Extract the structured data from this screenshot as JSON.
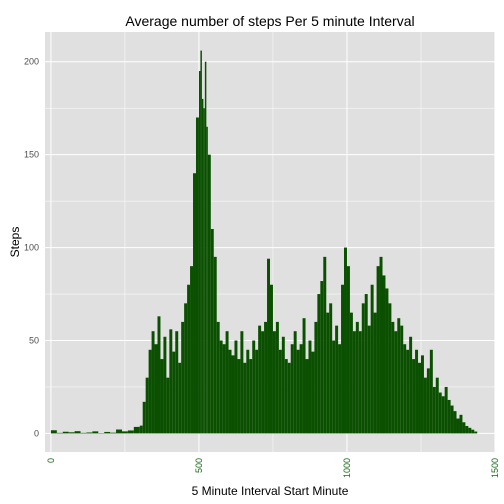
{
  "chart_data": {
    "type": "bar",
    "title": "Average number of steps Per 5 minute Interval",
    "xlabel": "5 Minute Interval Start Minute",
    "ylabel": "Steps",
    "xlim": [
      -20,
      1500
    ],
    "ylim": [
      -10,
      216
    ],
    "xticks": [
      0,
      500,
      1000,
      1500
    ],
    "xtick_labels": [
      "0",
      "500",
      "1000",
      "1500"
    ],
    "yticks": [
      0,
      50,
      100,
      150,
      200
    ],
    "ytick_labels": [
      "0",
      "50",
      "100",
      "150",
      "200"
    ],
    "grid": true,
    "bar_color": "#0a5000",
    "panel_color": "#e0e0e0",
    "series": [
      {
        "x": [
          0,
          20,
          40,
          60,
          80,
          100,
          120,
          140,
          160,
          180,
          200,
          220,
          240,
          260,
          280,
          300,
          310,
          320,
          330,
          340,
          350,
          360,
          370,
          380,
          390,
          400,
          410,
          420,
          430,
          440,
          450,
          460,
          470,
          480,
          490,
          500,
          505,
          510,
          515,
          520,
          525,
          530,
          540,
          550,
          560,
          570,
          580,
          590,
          600,
          610,
          620,
          630,
          640,
          650,
          660,
          670,
          680,
          690,
          700,
          710,
          720,
          730,
          740,
          750,
          760,
          770,
          780,
          790,
          800,
          810,
          820,
          830,
          840,
          850,
          860,
          870,
          880,
          890,
          900,
          910,
          920,
          930,
          940,
          950,
          960,
          970,
          980,
          990,
          1000,
          1010,
          1020,
          1030,
          1040,
          1050,
          1060,
          1070,
          1080,
          1090,
          1100,
          1110,
          1120,
          1130,
          1140,
          1150,
          1160,
          1170,
          1180,
          1190,
          1200,
          1210,
          1220,
          1230,
          1240,
          1250,
          1260,
          1270,
          1280,
          1290,
          1300,
          1310,
          1320,
          1330,
          1340,
          1350,
          1360,
          1370,
          1380,
          1390,
          1400,
          1410,
          1420,
          1430
        ],
        "values": [
          1.7,
          0.3,
          0.9,
          0.6,
          1.2,
          0.3,
          0.5,
          1.1,
          0.2,
          0.8,
          0.4,
          2.1,
          1.1,
          1.6,
          3.5,
          4.2,
          17,
          30,
          45,
          55,
          48,
          63,
          40,
          52,
          30,
          56,
          44,
          55,
          38,
          60,
          70,
          80,
          90,
          140,
          170,
          195,
          206,
          180,
          175,
          200,
          165,
          150,
          110,
          95,
          60,
          50,
          48,
          55,
          45,
          42,
          50,
          40,
          55,
          38,
          45,
          40,
          50,
          45,
          58,
          55,
          60,
          94,
          80,
          55,
          60,
          45,
          52,
          40,
          38,
          48,
          55,
          45,
          48,
          62,
          40,
          50,
          44,
          60,
          75,
          82,
          95,
          65,
          70,
          50,
          58,
          48,
          80,
          100,
          90,
          65,
          55,
          60,
          55,
          70,
          75,
          58,
          80,
          65,
          90,
          95,
          85,
          78,
          70,
          60,
          55,
          62,
          58,
          48,
          45,
          52,
          40,
          45,
          38,
          42,
          30,
          35,
          45,
          25,
          30,
          22,
          20,
          25,
          18,
          15,
          12,
          8,
          10,
          6,
          4,
          3,
          2,
          1
        ]
      }
    ]
  }
}
